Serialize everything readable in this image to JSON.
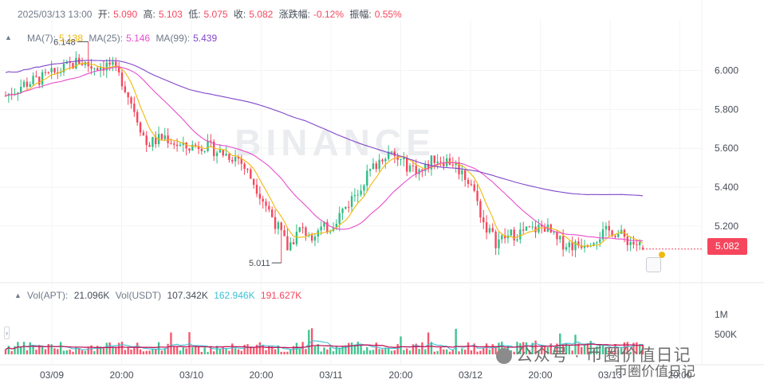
{
  "header": {
    "datetime": "2025/03/13 13:00",
    "open_label": "开:",
    "open": "5.090",
    "high_label": "高:",
    "high": "5.103",
    "low_label": "低:",
    "low": "5.075",
    "close_label": "收:",
    "close": "5.082",
    "change_label": "涨跌幅:",
    "change": "-0.12%",
    "amplitude_label": "振幅:",
    "amplitude": "0.55%"
  },
  "ma_legend": {
    "ma7_label": "MA(7):",
    "ma7": "5.138",
    "ma25_label": "MA(25):",
    "ma25": "5.146",
    "ma99_label": "MA(99):",
    "ma99": "5.439"
  },
  "vol_legend": {
    "vol_apt_label": "Vol(APT):",
    "vol_apt": "21.096K",
    "vol_usdt_label": "Vol(USDT)",
    "vol_usdt": "107.342K",
    "vol_ma1": "162.946K",
    "vol_ma2": "191.627K"
  },
  "last_price_tag": "5.082",
  "watermark": "BINANCE",
  "corner_watermark": {
    "line1": "公众号 · 币圈价值日记",
    "line2": "币圈价值日记"
  },
  "colors": {
    "up": "#2ebd85",
    "down": "#f6465d",
    "ma7": "#f0b90b",
    "ma25": "#e84ecb",
    "ma99": "#8046c9",
    "vol_ma_short": "#3dc0d4",
    "vol_ma_long": "#c2185b"
  },
  "chart_data": {
    "type": "candlestick",
    "price_axis": {
      "ticks": [
        "6.000",
        "5.800",
        "5.600",
        "5.400",
        "5.200"
      ],
      "range": [
        4.95,
        6.26
      ]
    },
    "volume_axis": {
      "ticks": [
        "1M",
        "500K"
      ],
      "range": [
        0,
        1300000
      ]
    },
    "time_axis": {
      "ticks": [
        "03/09",
        "20:00",
        "03/10",
        "20:00",
        "03/11",
        "20:00",
        "03/12",
        "20:00",
        "03/13",
        "20:00"
      ]
    },
    "annotations": {
      "high_label": "6.148",
      "low_label": "5.011"
    },
    "series_legend": [
      "MA(7)",
      "MA(25)",
      "MA(99)"
    ]
  }
}
